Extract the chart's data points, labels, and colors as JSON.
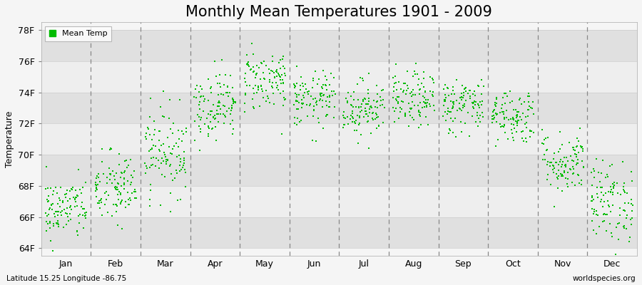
{
  "title": "Monthly Mean Temperatures 1901 - 2009",
  "ylabel": "Temperature",
  "xlabel_labels": [
    "Jan",
    "Feb",
    "Mar",
    "Apr",
    "May",
    "Jun",
    "Jul",
    "Aug",
    "Sep",
    "Oct",
    "Nov",
    "Dec"
  ],
  "ytick_labels": [
    "64F",
    "66F",
    "68F",
    "70F",
    "72F",
    "74F",
    "76F",
    "78F"
  ],
  "ytick_values": [
    64,
    66,
    68,
    70,
    72,
    74,
    76,
    78
  ],
  "ylim": [
    63.5,
    78.5
  ],
  "xlim": [
    0.0,
    12.0
  ],
  "monthly_means": [
    66.5,
    67.8,
    70.2,
    73.2,
    74.8,
    73.5,
    73.0,
    73.5,
    73.2,
    72.5,
    69.5,
    67.0
  ],
  "monthly_stds": [
    1.0,
    1.2,
    1.4,
    1.1,
    1.0,
    0.9,
    0.9,
    0.9,
    0.9,
    0.9,
    1.0,
    1.3
  ],
  "n_years": 109,
  "marker_color": "#00bb00",
  "marker_size": 4,
  "bg_color": "#f5f5f5",
  "band_light": "#eeeeee",
  "band_dark": "#e0e0e0",
  "title_fontsize": 15,
  "label_fontsize": 9,
  "tick_fontsize": 9,
  "legend_label": "Mean Temp",
  "lat_lon_text": "Latitude 15.25 Longitude -86.75",
  "watermark": "worldspecies.org",
  "seed": 42
}
